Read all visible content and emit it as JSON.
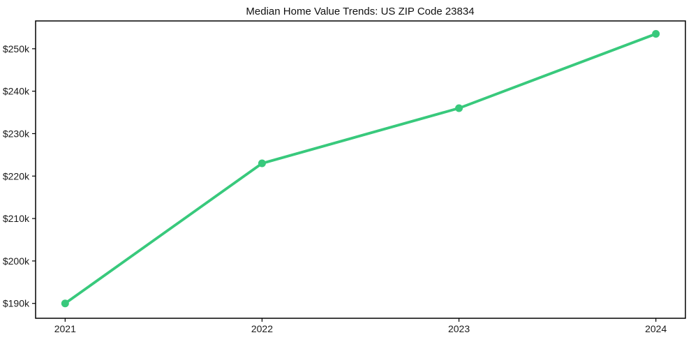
{
  "chart_data": {
    "type": "line",
    "title": "Median Home Value Trends: US ZIP Code 23834",
    "categories": [
      "2021",
      "2022",
      "2023",
      "2024"
    ],
    "series": [
      {
        "name": "Median Home Value",
        "values": [
          190000,
          223000,
          236000,
          253500
        ]
      }
    ],
    "y_ticks": [
      {
        "value": 190000,
        "label": "$190k"
      },
      {
        "value": 200000,
        "label": "$200k"
      },
      {
        "value": 210000,
        "label": "$210k"
      },
      {
        "value": 220000,
        "label": "$220k"
      },
      {
        "value": 230000,
        "label": "$230k"
      },
      {
        "value": 240000,
        "label": "$240k"
      },
      {
        "value": 250000,
        "label": "$250k"
      }
    ],
    "ylim": [
      186500,
      256550
    ],
    "x_padding": 0.15,
    "xlabel": "",
    "ylabel": "",
    "grid": false,
    "legend_position": "none",
    "line_color": "#38c97c",
    "marker": "circle",
    "marker_color": "#38c97c",
    "axis_color": "#000000",
    "text_color": "#1a1a1a",
    "background_color": "#ffffff"
  }
}
